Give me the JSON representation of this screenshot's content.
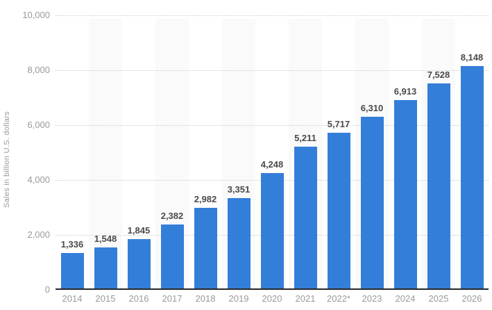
{
  "chart_data": {
    "type": "bar",
    "title": "",
    "xlabel": "",
    "ylabel": "Sales in billion U.S. dollars",
    "categories": [
      "2014",
      "2015",
      "2016",
      "2017",
      "2018",
      "2019",
      "2020",
      "2021",
      "2022*",
      "2023",
      "2024",
      "2025",
      "2026"
    ],
    "values": [
      1336,
      1548,
      1845,
      2382,
      2982,
      3351,
      4248,
      5211,
      5717,
      6310,
      6913,
      7528,
      8148
    ],
    "value_labels": [
      "1,336",
      "1,548",
      "1,845",
      "2,382",
      "2,982",
      "3,351",
      "4,248",
      "5,211",
      "5,717",
      "6,310",
      "6,913",
      "7,528",
      "8,148"
    ],
    "ylim": [
      0,
      10000
    ],
    "ytick_values": [
      0,
      2000,
      4000,
      6000,
      8000,
      10000
    ],
    "ytick_labels": [
      "0",
      "2,000",
      "4,000",
      "6,000",
      "8,000",
      "10,000"
    ],
    "grid": "horizontal-dotted",
    "legend": "none",
    "background_bands": "alternating light columns starting at second category",
    "colors": {
      "bar": "#337ED9",
      "column_band": "#fafafa",
      "gridline": "#cccccc",
      "tick_label": "#999999",
      "value_label": "#4a4a4a",
      "axis_line": "#262626",
      "background": "#ffffff"
    }
  }
}
